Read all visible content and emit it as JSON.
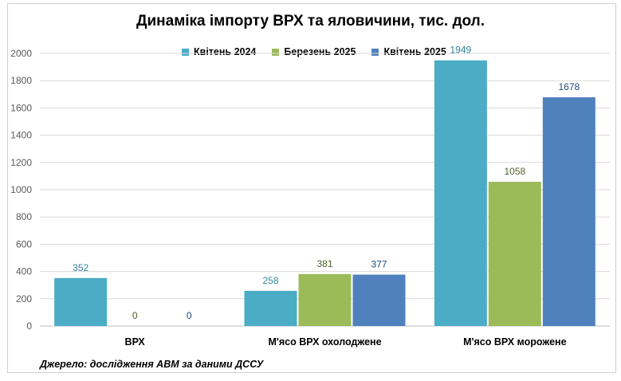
{
  "chart_data": {
    "type": "bar",
    "title": "Динаміка імпорту ВРХ та яловичини, тис. дол.",
    "categories": [
      "ВРХ",
      "М'ясо ВРХ охолоджене",
      "М'ясо ВРХ морожене"
    ],
    "series": [
      {
        "name": "Квітень 2024",
        "values": [
          352,
          258,
          1949
        ],
        "color": "#4BACC6",
        "label_color": "#31849B"
      },
      {
        "name": "Березень 2025",
        "values": [
          0,
          381,
          1058
        ],
        "color": "#9BBB59",
        "label_color": "#4F6228"
      },
      {
        "name": "Квітень 2025",
        "values": [
          0,
          377,
          1678
        ],
        "color": "#4F81BD",
        "label_color": "#1F497D"
      }
    ],
    "ylim": [
      0,
      2000
    ],
    "yticks": [
      0,
      200,
      400,
      600,
      800,
      1000,
      1200,
      1400,
      1600,
      1800,
      2000
    ],
    "grid": true,
    "legend": "top-center",
    "source": "Джерело: дослідження АВМ за даними ДССУ"
  }
}
